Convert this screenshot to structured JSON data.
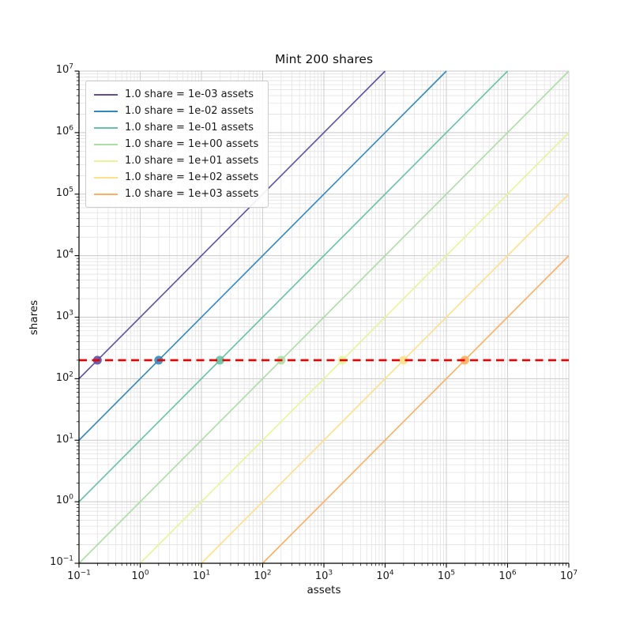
{
  "page": {
    "background": "#ffffff"
  },
  "chart_data": {
    "type": "line",
    "title": "Mint 200 shares",
    "xlabel": "assets",
    "ylabel": "shares",
    "xscale": "log",
    "yscale": "log",
    "xlim": [
      0.1,
      10000000
    ],
    "ylim": [
      0.1,
      10000000
    ],
    "x_ticks": {
      "base": 10,
      "exponents": [
        -1,
        0,
        1,
        2,
        3,
        4,
        5,
        6,
        7
      ]
    },
    "y_ticks": {
      "base": 10,
      "exponents": [
        -1,
        0,
        1,
        2,
        3,
        4,
        5,
        6,
        7
      ]
    },
    "grid": {
      "major": true,
      "minor": true,
      "major_color": "#c9c9c9",
      "minor_color": "#e3e3e3"
    },
    "legend": {
      "position": "upper-left"
    },
    "axis_color": "#000000",
    "series": [
      {
        "name": "1.0 share = 1e-03 assets",
        "rate_assets_per_share": 0.001,
        "color": "#5e4fa2",
        "line": [
          [
            0.1,
            100
          ],
          [
            10000,
            10000000
          ]
        ],
        "marker_at": [
          0.2,
          200
        ]
      },
      {
        "name": "1.0 share = 1e-02 assets",
        "rate_assets_per_share": 0.01,
        "color": "#3288bd",
        "line": [
          [
            0.1,
            10
          ],
          [
            100000,
            10000000
          ]
        ],
        "marker_at": [
          2,
          200
        ]
      },
      {
        "name": "1.0 share = 1e-01 assets",
        "rate_assets_per_share": 0.1,
        "color": "#66c2a5",
        "line": [
          [
            0.1,
            1
          ],
          [
            1000000,
            10000000
          ]
        ],
        "marker_at": [
          20,
          200
        ]
      },
      {
        "name": "1.0 share = 1e+00 assets",
        "rate_assets_per_share": 1,
        "color": "#abdda4",
        "line": [
          [
            0.1,
            0.1
          ],
          [
            10000000,
            10000000
          ]
        ],
        "marker_at": [
          200,
          200
        ]
      },
      {
        "name": "1.0 share = 1e+01 assets",
        "rate_assets_per_share": 10,
        "color": "#e6f598",
        "line": [
          [
            1,
            0.1
          ],
          [
            10000000,
            1000000
          ]
        ],
        "marker_at": [
          2000,
          200
        ]
      },
      {
        "name": "1.0 share = 1e+02 assets",
        "rate_assets_per_share": 100,
        "color": "#fee08b",
        "line": [
          [
            10,
            0.1
          ],
          [
            10000000,
            100000
          ]
        ],
        "marker_at": [
          20000,
          200
        ]
      },
      {
        "name": "1.0 share = 1e+03 assets",
        "rate_assets_per_share": 1000,
        "color": "#fdae61",
        "line": [
          [
            100,
            0.1
          ],
          [
            10000000,
            10000
          ]
        ],
        "marker_at": [
          200000,
          200
        ]
      }
    ],
    "reference_line": {
      "y": 200,
      "color": "#ee0000",
      "style": "dashed"
    }
  }
}
